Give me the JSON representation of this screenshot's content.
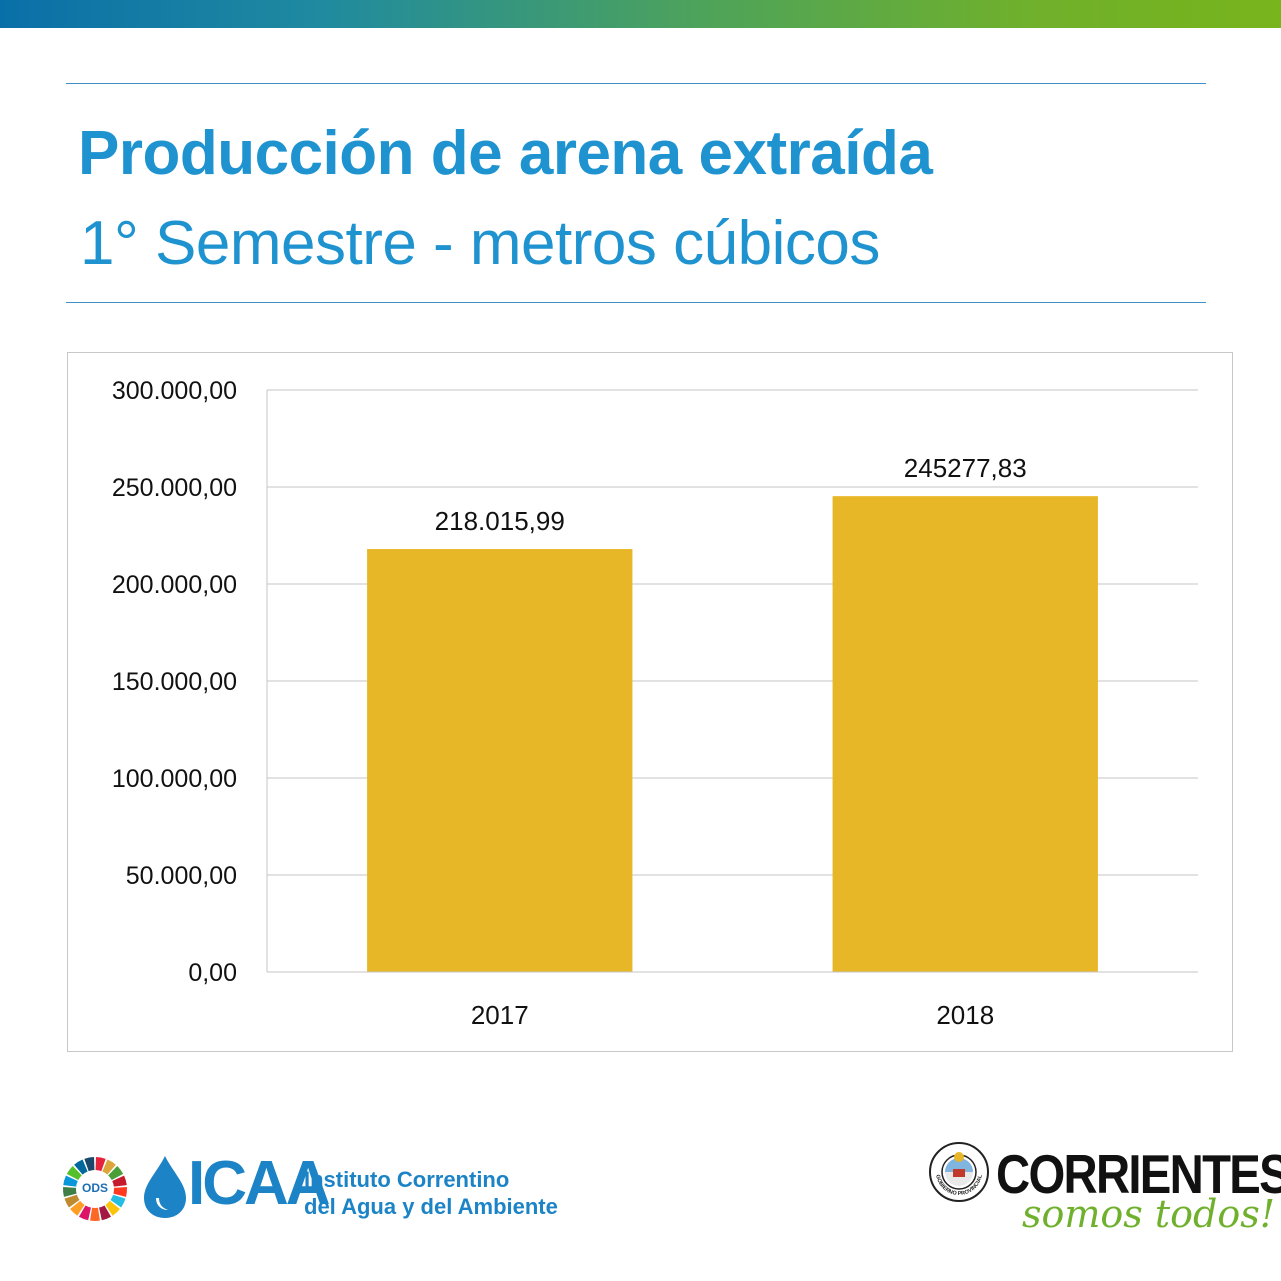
{
  "header": {
    "title": "Producción de arena extraída",
    "subtitle": "1° Semestre - metros cúbicos"
  },
  "colors": {
    "accent_blue": "#1f93cf",
    "bar": "#e8b727",
    "grid": "#c6c6c6"
  },
  "chart_data": {
    "type": "bar",
    "categories": [
      "2017",
      "2018"
    ],
    "values": [
      218015.99,
      245277.83
    ],
    "data_labels": [
      "218.015,99",
      "245277,83"
    ],
    "ylim": [
      0,
      300000
    ],
    "yticks": [
      0,
      50000,
      100000,
      150000,
      200000,
      250000,
      300000
    ],
    "ytick_labels": [
      "0,00",
      "50.000,00",
      "100.000,00",
      "150.000,00",
      "200.000,00",
      "250.000,00",
      "300.000,00"
    ],
    "grid": true,
    "legend": "none"
  },
  "footer": {
    "ods_label": "ODS",
    "icaa_logo": "ICAA",
    "institute_line1": "Instituto Correntino",
    "institute_line2": "del Agua y del Ambiente",
    "corrientes_logo": "CORRIENTES",
    "corrientes_slogan": "somos todos!",
    "seal_text": "GOBIERNO PROVINCIAL"
  }
}
